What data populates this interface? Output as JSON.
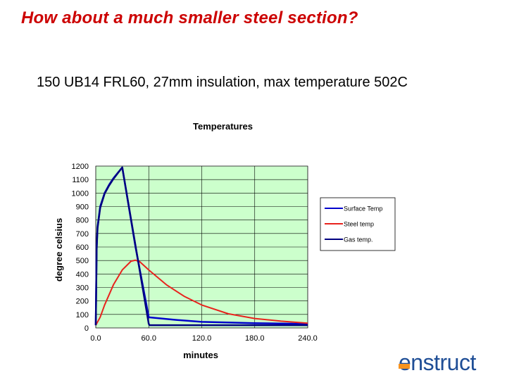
{
  "slide": {
    "title": "How about a much smaller steel section?",
    "subtitle": "150 UB14 FRL60, 27mm insulation, max temperature 502C"
  },
  "logo": {
    "text": "nstruct",
    "lead_letter": "e"
  },
  "colors": {
    "title": "#cc0000",
    "plot_bg": "#ccffcc",
    "grid": "#000000",
    "surface": "#0000cc",
    "steel": "#e8231d",
    "gas": "#000080",
    "logo_blue": "#1f4e96",
    "logo_orange": "#f7931e"
  },
  "chart_data": {
    "type": "line",
    "title": "Temperatures",
    "xlabel": "minutes",
    "ylabel": "degree celsius",
    "xlim": [
      0,
      240
    ],
    "ylim": [
      0,
      1200
    ],
    "xticks": [
      0,
      60,
      120,
      180,
      240
    ],
    "xtick_labels": [
      "0.0",
      "60.0",
      "120.0",
      "180.0",
      "240.0"
    ],
    "yticks": [
      0,
      100,
      200,
      300,
      400,
      500,
      600,
      700,
      800,
      900,
      1000,
      1100,
      1200
    ],
    "grid": true,
    "legend_position": "right",
    "series": [
      {
        "name": "Surface Temp",
        "color": "#0000cc",
        "x": [
          0,
          1,
          2,
          5,
          10,
          15,
          20,
          25,
          30,
          45,
          60,
          61,
          90,
          120,
          180,
          240
        ],
        "y": [
          20,
          600,
          750,
          900,
          1000,
          1060,
          1110,
          1150,
          1190,
          600,
          80,
          78,
          60,
          45,
          35,
          30
        ]
      },
      {
        "name": "Steel temp",
        "color": "#e8231d",
        "x": [
          0,
          5,
          10,
          20,
          30,
          40,
          45,
          50,
          60,
          80,
          100,
          120,
          150,
          180,
          210,
          240
        ],
        "y": [
          20,
          80,
          170,
          320,
          430,
          495,
          502,
          490,
          430,
          320,
          235,
          170,
          105,
          70,
          50,
          35
        ]
      },
      {
        "name": "Gas temp.",
        "color": "#000080",
        "x": [
          0,
          1,
          2,
          5,
          10,
          15,
          20,
          25,
          30,
          60,
          61,
          240
        ],
        "y": [
          20,
          580,
          740,
          890,
          995,
          1055,
          1105,
          1148,
          1190,
          30,
          20,
          20
        ]
      }
    ]
  }
}
